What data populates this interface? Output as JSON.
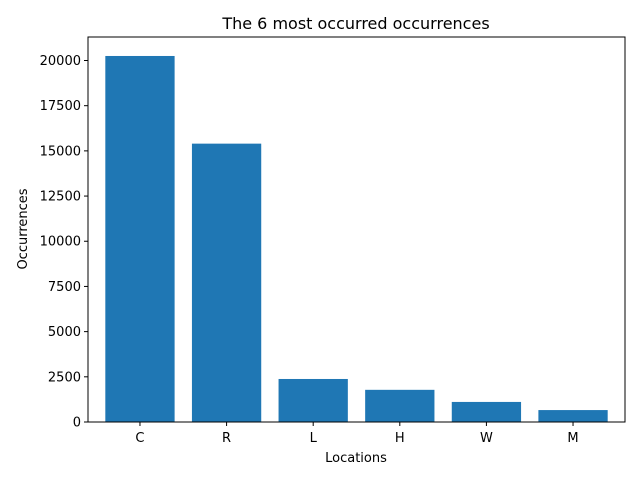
{
  "chart_data": {
    "type": "bar",
    "title": "The 6 most occurred occurrences",
    "xlabel": "Locations",
    "ylabel": "Occurrences",
    "categories": [
      "C",
      "R",
      "L",
      "H",
      "W",
      "M"
    ],
    "values": [
      20250,
      15400,
      2380,
      1780,
      1110,
      660
    ],
    "ylim": [
      0,
      21300
    ],
    "yticks": [
      0,
      2500,
      5000,
      7500,
      10000,
      12500,
      15000,
      17500,
      20000
    ],
    "grid": false,
    "bar_color": "#1f77b4"
  }
}
